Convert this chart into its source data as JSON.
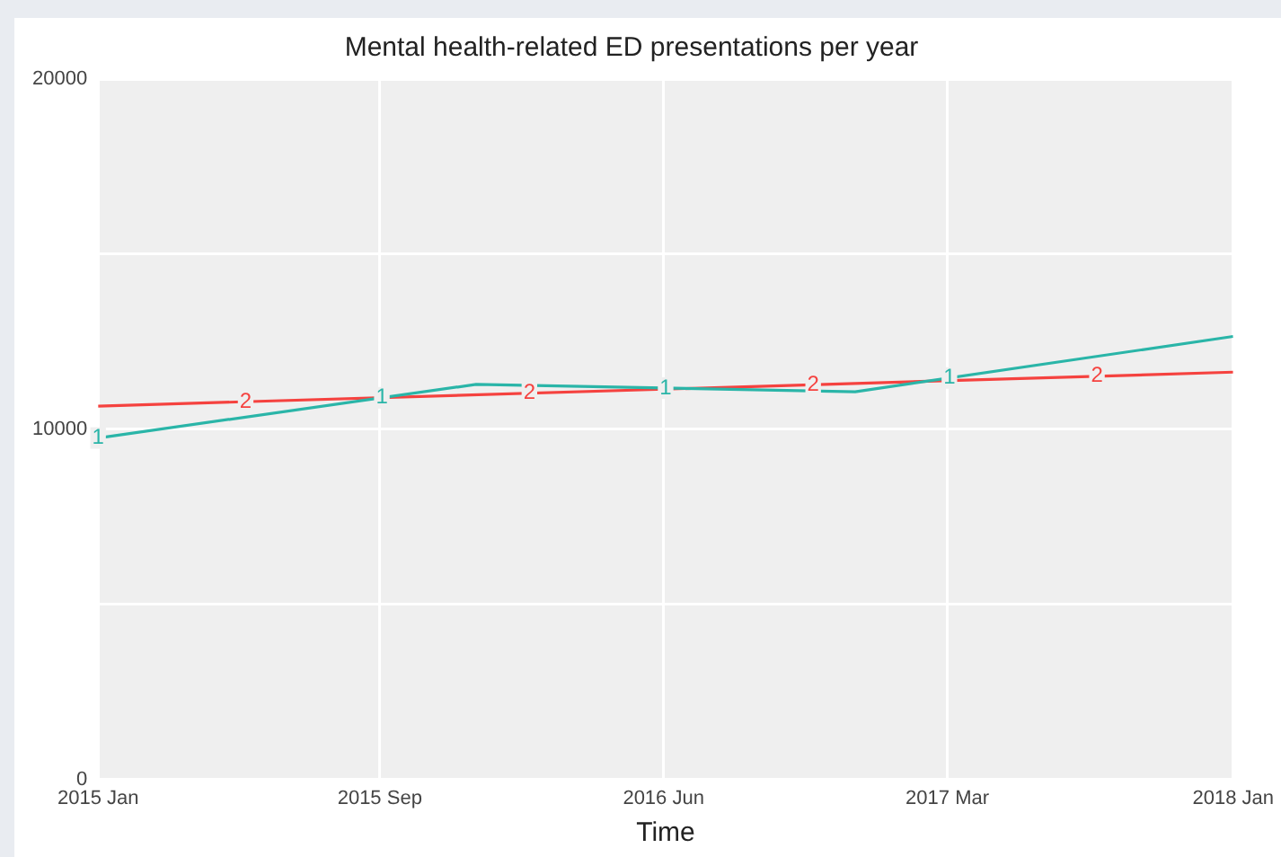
{
  "chart_data": {
    "type": "line",
    "title": "Mental health-related ED presentations per year",
    "xlabel": "Time",
    "x": [
      "2015-01",
      "2016-01",
      "2017-01",
      "2018-01"
    ],
    "series": [
      {
        "name": "1",
        "color": "#2ab5a8",
        "values": [
          9750,
          11280,
          11070,
          12650
        ]
      },
      {
        "name": "2",
        "color": "#f5423f",
        "x": [
          "2015-01",
          "2018-01"
        ],
        "values": [
          10660,
          11630
        ]
      }
    ],
    "xlim": [
      "2015-01",
      "2018-01"
    ],
    "xticks": [
      {
        "value": "2015-01",
        "label": "2015 Jan"
      },
      {
        "value": "2015-09-30",
        "label": "2015 Sep"
      },
      {
        "value": "2016-06-30",
        "label": "2016 Jun"
      },
      {
        "value": "2017-03-31",
        "label": "2017 Mar"
      },
      {
        "value": "2018-01",
        "label": "2018 Jan"
      }
    ],
    "ylim": [
      0,
      20000
    ],
    "yticks": [
      0,
      {
        "value": 5000,
        "label": null
      },
      10000,
      {
        "value": 15000,
        "label": null
      },
      20000
    ],
    "grid": true,
    "legend": false,
    "marker": "none",
    "line_style": "solid"
  }
}
